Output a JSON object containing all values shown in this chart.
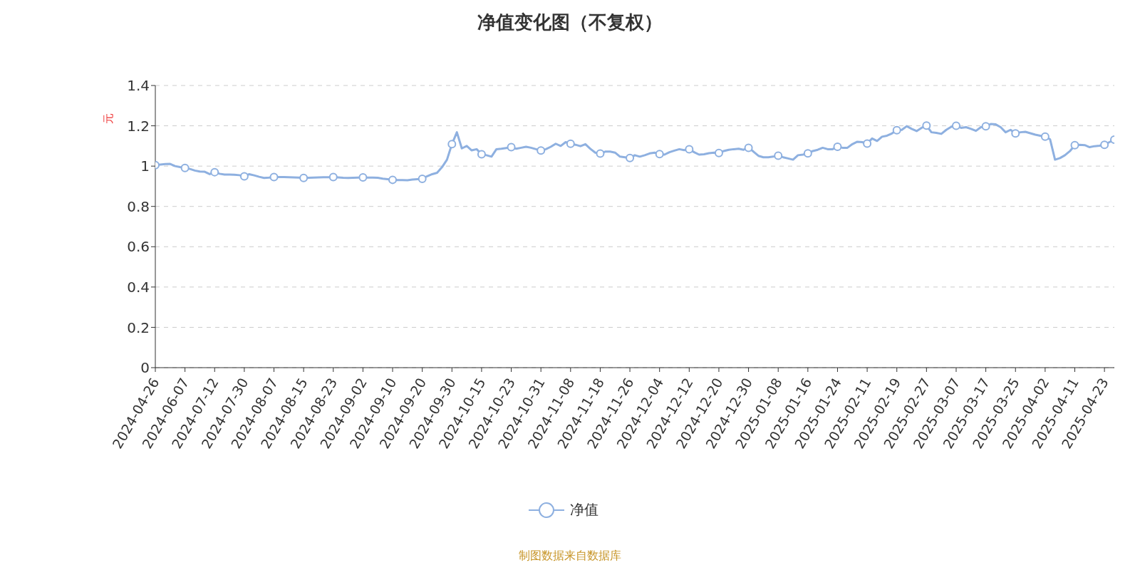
{
  "chart_data": {
    "type": "line",
    "title": "净值变化图（不复权）",
    "ylabel": "元",
    "annotations": [
      "制图数据来自数据库"
    ],
    "categories": [
      "2024-04-26",
      null,
      null,
      null,
      null,
      null,
      "2024-06-07",
      null,
      null,
      null,
      null,
      null,
      "2024-07-12",
      null,
      null,
      null,
      null,
      null,
      "2024-07-30",
      null,
      null,
      null,
      null,
      null,
      "2024-08-07",
      null,
      null,
      null,
      null,
      null,
      "2024-08-15",
      null,
      null,
      null,
      null,
      null,
      "2024-08-23",
      null,
      null,
      null,
      null,
      null,
      "2024-09-02",
      null,
      null,
      null,
      null,
      null,
      "2024-09-10",
      null,
      null,
      null,
      null,
      null,
      "2024-09-20",
      null,
      null,
      null,
      null,
      null,
      "2024-09-30",
      null,
      null,
      null,
      null,
      null,
      "2024-10-15",
      null,
      null,
      null,
      null,
      null,
      "2024-10-23",
      null,
      null,
      null,
      null,
      null,
      "2024-10-31",
      null,
      null,
      null,
      null,
      null,
      "2024-11-08",
      null,
      null,
      null,
      null,
      null,
      "2024-11-18",
      null,
      null,
      null,
      null,
      null,
      "2024-11-26",
      null,
      null,
      null,
      null,
      null,
      "2024-12-04",
      null,
      null,
      null,
      null,
      null,
      "2024-12-12",
      null,
      null,
      null,
      null,
      null,
      "2024-12-20",
      null,
      null,
      null,
      null,
      null,
      "2024-12-30",
      null,
      null,
      null,
      null,
      null,
      "2025-01-08",
      null,
      null,
      null,
      null,
      null,
      "2025-01-16",
      null,
      null,
      null,
      null,
      null,
      "2025-01-24",
      null,
      null,
      null,
      null,
      null,
      "2025-02-11",
      null,
      null,
      null,
      null,
      null,
      "2025-02-19",
      null,
      null,
      null,
      null,
      null,
      "2025-02-27",
      null,
      null,
      null,
      null,
      null,
      "2025-03-07",
      null,
      null,
      null,
      null,
      null,
      "2025-03-17",
      null,
      null,
      null,
      null,
      null,
      "2025-03-25",
      null,
      null,
      null,
      null,
      null,
      "2025-04-02",
      null,
      null,
      null,
      null,
      null,
      "2025-04-11",
      null,
      null,
      null,
      null,
      null,
      "2025-04-23",
      null,
      null
    ],
    "series": [
      {
        "name": "净值",
        "color": "#8eb0e0",
        "values": [
          1.005,
          1.008,
          1.01,
          1.011,
          1.0,
          0.995,
          0.991,
          0.986,
          0.978,
          0.973,
          0.972,
          0.96,
          0.97,
          0.962,
          0.958,
          0.958,
          0.957,
          0.955,
          0.949,
          0.96,
          0.954,
          0.947,
          0.941,
          0.943,
          0.946,
          0.946,
          0.946,
          0.945,
          0.944,
          0.943,
          0.941,
          0.942,
          0.943,
          0.944,
          0.945,
          0.945,
          0.946,
          0.944,
          0.942,
          0.941,
          0.942,
          0.943,
          0.944,
          0.943,
          0.943,
          0.942,
          0.938,
          0.935,
          0.932,
          0.931,
          0.931,
          0.93,
          0.933,
          0.935,
          0.937,
          0.95,
          0.96,
          0.967,
          0.995,
          1.032,
          1.109,
          1.168,
          1.088,
          1.1,
          1.078,
          1.084,
          1.059,
          1.054,
          1.047,
          1.084,
          1.086,
          1.09,
          1.094,
          1.086,
          1.091,
          1.096,
          1.091,
          1.084,
          1.077,
          1.084,
          1.096,
          1.111,
          1.1,
          1.119,
          1.111,
          1.106,
          1.099,
          1.109,
          1.086,
          1.067,
          1.062,
          1.072,
          1.072,
          1.067,
          1.047,
          1.044,
          1.04,
          1.054,
          1.047,
          1.054,
          1.063,
          1.067,
          1.06,
          1.057,
          1.069,
          1.077,
          1.084,
          1.079,
          1.084,
          1.069,
          1.057,
          1.059,
          1.064,
          1.067,
          1.065,
          1.075,
          1.081,
          1.084,
          1.086,
          1.081,
          1.091,
          1.072,
          1.051,
          1.044,
          1.044,
          1.047,
          1.052,
          1.044,
          1.038,
          1.032,
          1.054,
          1.057,
          1.063,
          1.075,
          1.081,
          1.091,
          1.084,
          1.084,
          1.096,
          1.091,
          1.091,
          1.109,
          1.121,
          1.119,
          1.112,
          1.137,
          1.125,
          1.146,
          1.151,
          1.162,
          1.178,
          1.18,
          1.198,
          1.185,
          1.174,
          1.19,
          1.201,
          1.168,
          1.165,
          1.16,
          1.18,
          1.195,
          1.2,
          1.19,
          1.193,
          1.185,
          1.175,
          1.193,
          1.198,
          1.209,
          1.207,
          1.193,
          1.168,
          1.18,
          1.162,
          1.168,
          1.17,
          1.163,
          1.156,
          1.151,
          1.146,
          1.133,
          1.032,
          1.04,
          1.054,
          1.074,
          1.104,
          1.106,
          1.104,
          1.094,
          1.099,
          1.101,
          1.106,
          1.119,
          1.131
        ]
      }
    ],
    "ylim": [
      0,
      1.4
    ],
    "yticks": [
      0,
      0.2,
      0.4,
      0.6,
      0.8,
      1,
      1.2,
      1.4
    ],
    "grid": "y",
    "legend": "bottom",
    "line_style": "solid"
  }
}
